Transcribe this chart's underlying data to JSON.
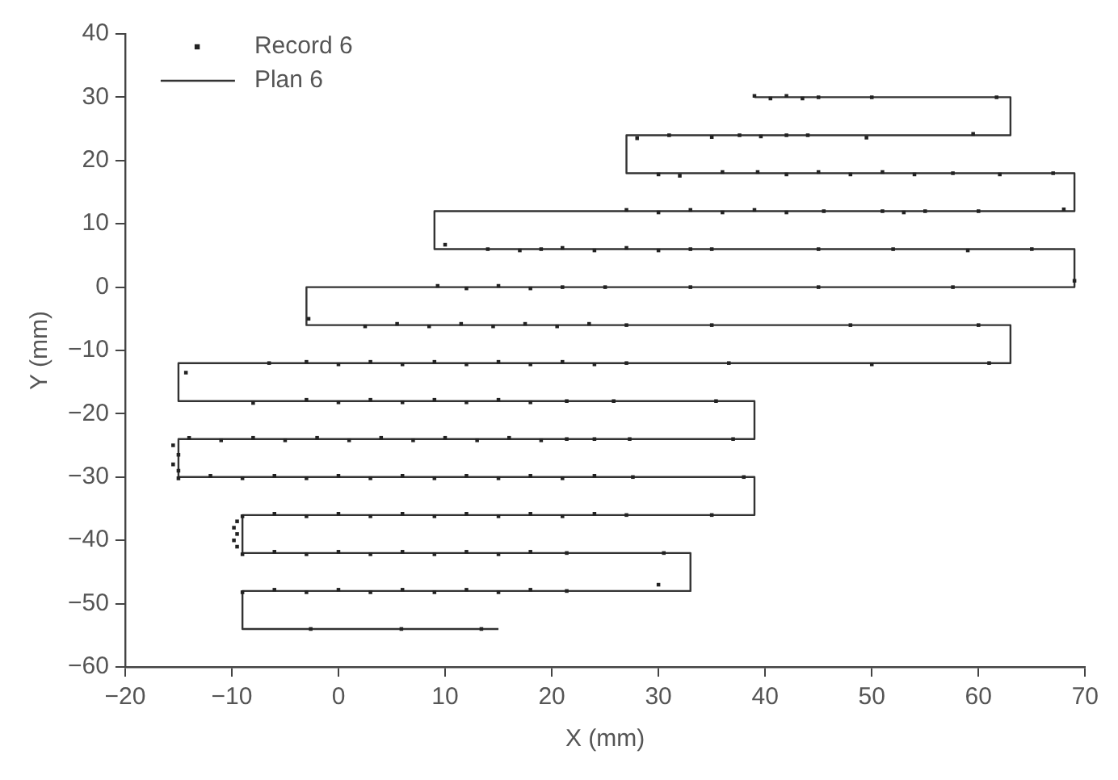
{
  "chart_data": {
    "type": "scatter",
    "xlabel": "X (mm)",
    "ylabel": "Y (mm)",
    "xlim": [
      -20,
      70
    ],
    "xticks": [
      -20,
      -10,
      0,
      10,
      20,
      30,
      40,
      50,
      60,
      70
    ],
    "ylim": [
      -60,
      40
    ],
    "yticks": [
      -60,
      -50,
      -40,
      -30,
      -20,
      -10,
      0,
      10,
      20,
      30,
      40
    ],
    "grid": false,
    "legend": "top left",
    "series": [
      {
        "name": "Record 6",
        "marker": "square",
        "color": "#222222",
        "x": [
          39,
          40.5,
          42,
          43.5,
          45,
          50,
          61.7,
          28,
          31,
          35,
          37.6,
          39.6,
          42,
          44,
          49.5,
          59.5,
          30,
          32,
          36,
          39.3,
          42,
          45,
          48,
          51,
          54,
          57.6,
          62,
          67,
          27,
          30,
          33,
          36,
          39,
          42,
          45.5,
          51,
          53,
          55,
          60,
          68,
          10,
          14,
          17,
          19,
          21,
          24,
          27,
          30,
          33,
          35,
          45,
          52,
          59,
          65,
          9.3,
          12,
          15,
          18,
          21,
          25,
          33,
          45,
          57.6,
          69,
          -2.8,
          2.5,
          5.5,
          8.5,
          11.5,
          14.5,
          17.5,
          20.5,
          23.5,
          27,
          35,
          48,
          60,
          -14.3,
          -6.5,
          -3,
          0,
          3,
          6,
          9,
          12,
          15,
          18,
          21,
          24,
          27,
          36.6,
          50,
          61,
          -8,
          -3,
          0,
          3,
          6,
          9,
          12,
          15,
          18,
          21.4,
          25.8,
          35.4,
          -14,
          -11,
          -8,
          -5,
          -2,
          1,
          4,
          7,
          10,
          13,
          16,
          19,
          21.4,
          24,
          27.3,
          37,
          -15.5,
          -15,
          -15.5,
          -15,
          -15,
          -12,
          -9,
          -6,
          -3,
          0,
          3,
          6,
          9,
          12,
          15,
          18,
          21,
          24,
          27.6,
          38,
          -9,
          -6,
          -3,
          0,
          3,
          6,
          9,
          12,
          15,
          18,
          21,
          24,
          27,
          35,
          -9.5,
          -9.8,
          -9.5,
          -9.8,
          -9.5,
          -9,
          -6,
          -3,
          0,
          3,
          6,
          9,
          12,
          15,
          18,
          21.4,
          30.5,
          -9,
          -6,
          -3,
          0,
          3,
          6,
          9,
          12,
          15,
          18,
          21.4,
          30,
          -2.6,
          5.9,
          13.4
        ],
        "values": [
          30.2,
          29.8,
          30.2,
          29.8,
          30,
          30,
          30,
          23.5,
          24,
          23.7,
          24,
          23.8,
          24,
          24,
          23.6,
          24.2,
          17.8,
          17.6,
          18.2,
          18.2,
          17.8,
          18.2,
          17.8,
          18.2,
          17.8,
          18,
          17.8,
          18,
          12.2,
          11.8,
          12.2,
          11.8,
          12.2,
          11.8,
          12,
          12,
          11.8,
          12,
          12,
          12.3,
          6.7,
          6,
          5.8,
          6,
          6.2,
          5.8,
          6.2,
          5.8,
          6,
          6,
          6,
          6,
          5.8,
          6,
          0.2,
          -0.2,
          0.2,
          -0.2,
          0,
          0,
          0,
          0,
          0,
          1,
          -5,
          -6.2,
          -5.8,
          -6.2,
          -5.8,
          -6.2,
          -5.8,
          -6.2,
          -5.8,
          -6,
          -6,
          -6,
          -6,
          -13.5,
          -12,
          -11.8,
          -12.2,
          -11.8,
          -12.2,
          -11.8,
          -12.2,
          -11.8,
          -12.2,
          -11.8,
          -12.2,
          -12,
          -12,
          -12.2,
          -12,
          -18.3,
          -17.8,
          -18.2,
          -17.8,
          -18.2,
          -17.8,
          -18.2,
          -17.8,
          -18.2,
          -18,
          -18,
          -18,
          -23.8,
          -24.2,
          -23.8,
          -24.2,
          -23.8,
          -24.2,
          -23.8,
          -24.2,
          -23.8,
          -24.2,
          -23.8,
          -24.2,
          -24,
          -24,
          -24,
          -24,
          -25,
          -26.5,
          -28,
          -29,
          -30.2,
          -29.8,
          -30.2,
          -29.8,
          -30.2,
          -29.8,
          -30.2,
          -29.8,
          -30.2,
          -29.8,
          -30.2,
          -29.8,
          -30.2,
          -29.8,
          -30,
          -30,
          -36.2,
          -35.8,
          -36.2,
          -35.8,
          -36.2,
          -35.8,
          -36.2,
          -35.8,
          -36.2,
          -35.8,
          -36.2,
          -35.8,
          -36,
          -36,
          -37,
          -38,
          -39,
          -40,
          -41,
          -42.2,
          -41.8,
          -42.2,
          -41.8,
          -42.2,
          -41.8,
          -42.2,
          -41.8,
          -42.2,
          -41.8,
          -42,
          -42,
          -48.2,
          -47.8,
          -48.2,
          -47.8,
          -48.2,
          -47.8,
          -48.2,
          -47.8,
          -48.2,
          -47.8,
          -48,
          -47,
          -54,
          -54,
          -54
        ]
      },
      {
        "name": "Plan 6",
        "type": "line",
        "marker": "none",
        "line_style": "solid",
        "color": "#333333",
        "x": [
          15,
          -9,
          -9,
          33,
          33,
          -9,
          -9,
          39,
          39,
          -15,
          -15,
          39,
          39,
          -15,
          -15,
          63,
          63,
          -3,
          -3,
          69,
          69,
          9,
          9,
          69,
          69,
          27,
          27,
          63,
          63,
          39
        ],
        "values": [
          -54,
          -54,
          -48,
          -48,
          -42,
          -42,
          -36,
          -36,
          -30,
          -30,
          -24,
          -24,
          -18,
          -18,
          -12,
          -12,
          -6,
          -6,
          0,
          0,
          6,
          6,
          12,
          12,
          18,
          18,
          24,
          24,
          30,
          30
        ]
      }
    ]
  }
}
